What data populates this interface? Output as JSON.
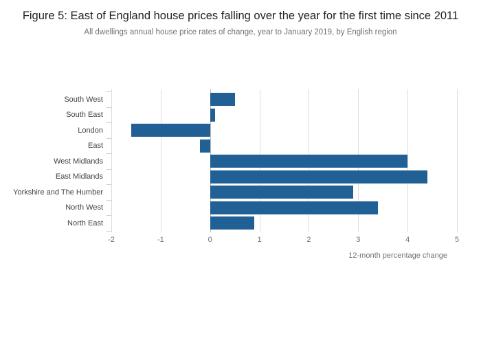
{
  "title": "Figure 5: East of England house prices falling over the year for the first time since 2011",
  "subtitle": "All dwellings annual house price rates of change, year to January 2019, by English region",
  "chart_data": {
    "type": "bar",
    "orientation": "horizontal",
    "title": "Figure 5: East of England house prices falling over the year for the first time since 2011",
    "subtitle": "All dwellings annual house price rates of change, year to January 2019, by English region",
    "categories": [
      "South West",
      "South East",
      "London",
      "East",
      "West Midlands",
      "East Midlands",
      "Yorkshire and The Humber",
      "North West",
      "North East"
    ],
    "values": [
      0.5,
      0.1,
      -1.6,
      -0.2,
      4.0,
      4.4,
      2.9,
      3.4,
      0.9
    ],
    "xlabel": "12-month percentage change",
    "ylabel": "",
    "xlim": [
      -2,
      5
    ],
    "xticks": [
      -2,
      -1,
      0,
      1,
      2,
      3,
      4,
      5
    ],
    "grid": true,
    "legend": "none",
    "bar_color": "#206095",
    "gridline_color": "#dcdcdc"
  }
}
